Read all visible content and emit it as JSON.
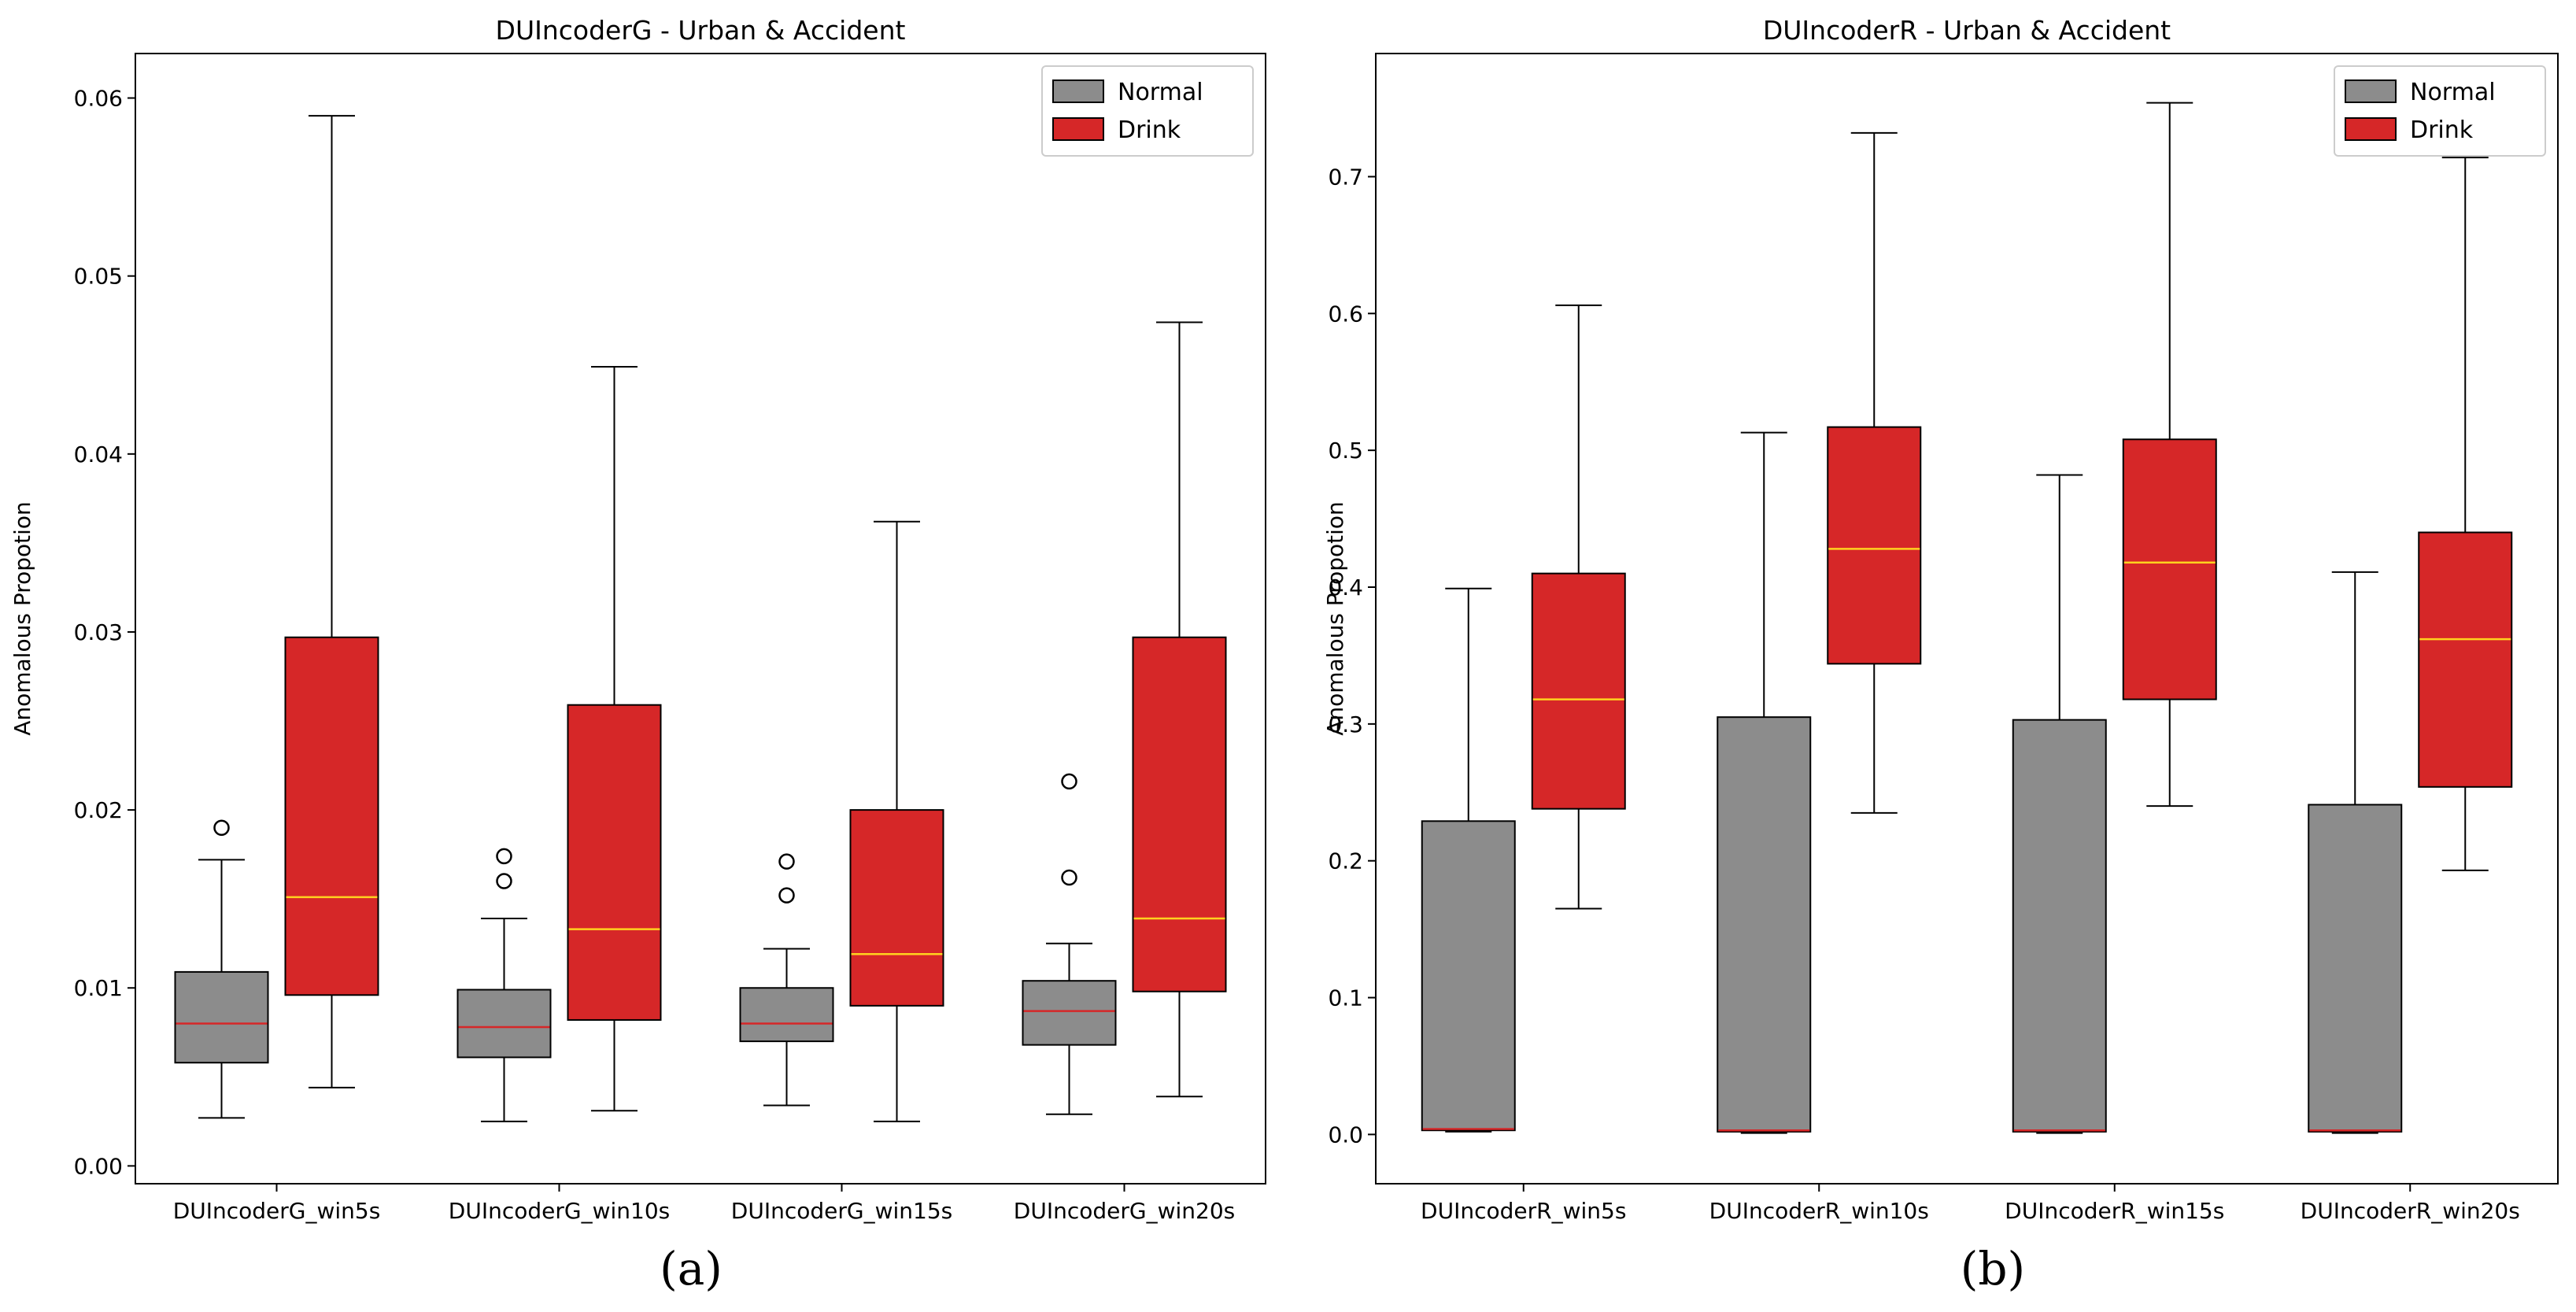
{
  "colors": {
    "normal_fill": "#8c8c8c",
    "drink_fill": "#d62728",
    "normal_median": "#d62728",
    "drink_median": "#ffd21f",
    "edge": "#000000"
  },
  "chart_data": [
    {
      "type": "boxplot",
      "title": "DUIncoderG - Urban & Accident",
      "xlabel": "",
      "ylabel": "Anomalous Propotion",
      "ylim": [
        -0.001,
        0.0625
      ],
      "yticks": [
        0.0,
        0.01,
        0.02,
        0.03,
        0.04,
        0.05,
        0.06
      ],
      "ytick_labels": [
        "0.00",
        "0.01",
        "0.02",
        "0.03",
        "0.04",
        "0.05",
        "0.06"
      ],
      "legend": {
        "placement": "top-right",
        "entries": [
          "Normal",
          "Drink"
        ]
      },
      "categories": [
        "DUIncoderG_win5s",
        "DUIncoderG_win10s",
        "DUIncoderG_win15s",
        "DUIncoderG_win20s"
      ],
      "series": [
        {
          "name": "Normal",
          "boxes": [
            {
              "whislo": 0.0027,
              "q1": 0.0058,
              "med": 0.008,
              "q3": 0.0109,
              "whishi": 0.0172,
              "fliers": [
                0.019
              ]
            },
            {
              "whislo": 0.0025,
              "q1": 0.0061,
              "med": 0.0078,
              "q3": 0.0099,
              "whishi": 0.0139,
              "fliers": [
                0.016,
                0.0174
              ]
            },
            {
              "whislo": 0.0034,
              "q1": 0.007,
              "med": 0.008,
              "q3": 0.01,
              "whishi": 0.0122,
              "fliers": [
                0.0152,
                0.0171
              ]
            },
            {
              "whislo": 0.0029,
              "q1": 0.0068,
              "med": 0.0087,
              "q3": 0.0104,
              "whishi": 0.0125,
              "fliers": [
                0.0162,
                0.0216
              ]
            }
          ]
        },
        {
          "name": "Drink",
          "boxes": [
            {
              "whislo": 0.0044,
              "q1": 0.0096,
              "med": 0.0151,
              "q3": 0.0297,
              "whishi": 0.059,
              "fliers": []
            },
            {
              "whislo": 0.0031,
              "q1": 0.0082,
              "med": 0.0133,
              "q3": 0.0259,
              "whishi": 0.0449,
              "fliers": []
            },
            {
              "whislo": 0.0025,
              "q1": 0.009,
              "med": 0.0119,
              "q3": 0.02,
              "whishi": 0.0362,
              "fliers": []
            },
            {
              "whislo": 0.0039,
              "q1": 0.0098,
              "med": 0.0139,
              "q3": 0.0297,
              "whishi": 0.0474,
              "fliers": []
            }
          ]
        }
      ]
    },
    {
      "type": "boxplot",
      "title": "DUIncoderR - Urban & Accident",
      "xlabel": "",
      "ylabel": "Anomalous Propotion",
      "ylim": [
        -0.036,
        0.79
      ],
      "yticks": [
        0.0,
        0.1,
        0.2,
        0.3,
        0.4,
        0.5,
        0.6,
        0.7
      ],
      "ytick_labels": [
        "0.0",
        "0.1",
        "0.2",
        "0.3",
        "0.4",
        "0.5",
        "0.6",
        "0.7"
      ],
      "legend": {
        "placement": "top-right",
        "entries": [
          "Normal",
          "Drink"
        ]
      },
      "categories": [
        "DUIncoderR_win5s",
        "DUIncoderR_win10s",
        "DUIncoderR_win15s",
        "DUIncoderR_win20s"
      ],
      "series": [
        {
          "name": "Normal",
          "boxes": [
            {
              "whislo": 0.002,
              "q1": 0.003,
              "med": 0.004,
              "q3": 0.229,
              "whishi": 0.399,
              "fliers": []
            },
            {
              "whislo": 0.001,
              "q1": 0.002,
              "med": 0.003,
              "q3": 0.305,
              "whishi": 0.513,
              "fliers": []
            },
            {
              "whislo": 0.001,
              "q1": 0.002,
              "med": 0.003,
              "q3": 0.303,
              "whishi": 0.482,
              "fliers": []
            },
            {
              "whislo": 0.001,
              "q1": 0.002,
              "med": 0.003,
              "q3": 0.241,
              "whishi": 0.411,
              "fliers": []
            }
          ]
        },
        {
          "name": "Drink",
          "boxes": [
            {
              "whislo": 0.165,
              "q1": 0.238,
              "med": 0.318,
              "q3": 0.41,
              "whishi": 0.606,
              "fliers": []
            },
            {
              "whislo": 0.235,
              "q1": 0.344,
              "med": 0.428,
              "q3": 0.517,
              "whishi": 0.732,
              "fliers": []
            },
            {
              "whislo": 0.24,
              "q1": 0.318,
              "med": 0.418,
              "q3": 0.508,
              "whishi": 0.754,
              "fliers": []
            },
            {
              "whislo": 0.193,
              "q1": 0.254,
              "med": 0.362,
              "q3": 0.44,
              "whishi": 0.714,
              "fliers": []
            }
          ]
        }
      ]
    }
  ],
  "captions": [
    "(a)",
    "(b)"
  ]
}
